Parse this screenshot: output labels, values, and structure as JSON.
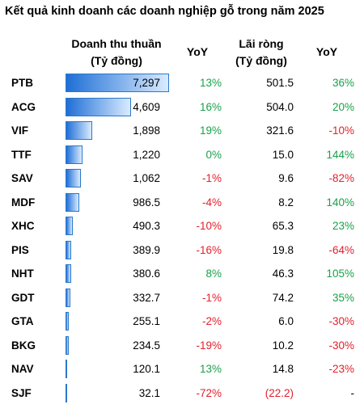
{
  "title": "Kết quả kinh doanh các doanh nghiệp gỗ trong năm 2025",
  "headers": {
    "revenue_line1": "Doanh thu thuần",
    "revenue_line2": "(Tỷ đồng)",
    "yoy1": "YoY",
    "net_line1": "Lãi ròng",
    "net_line2": "(Tỷ đồng)",
    "yoy2": "YoY"
  },
  "colors": {
    "positive": "#19a14a",
    "negative": "#e3202c",
    "bar": "#1f6fd6"
  },
  "chart_data": {
    "type": "table",
    "title": "Kết quả kinh doanh các doanh nghiệp gỗ trong năm 2025",
    "columns": [
      "Doanh thu thuần (Tỷ đồng)",
      "YoY",
      "Lãi ròng (Tỷ đồng)",
      "YoY"
    ],
    "revenue_max": 7297,
    "rows": [
      {
        "ticker": "PTB",
        "revenue": 7297,
        "revenue_label": "7,297",
        "yoy_revenue": "13%",
        "net_profit": "501.5",
        "yoy_profit": "36%"
      },
      {
        "ticker": "ACG",
        "revenue": 4609,
        "revenue_label": "4,609",
        "yoy_revenue": "16%",
        "net_profit": "504.0",
        "yoy_profit": "20%"
      },
      {
        "ticker": "VIF",
        "revenue": 1898,
        "revenue_label": "1,898",
        "yoy_revenue": "19%",
        "net_profit": "321.6",
        "yoy_profit": "-10%"
      },
      {
        "ticker": "TTF",
        "revenue": 1220,
        "revenue_label": "1,220",
        "yoy_revenue": "0%",
        "net_profit": "15.0",
        "yoy_profit": "144%"
      },
      {
        "ticker": "SAV",
        "revenue": 1062,
        "revenue_label": "1,062",
        "yoy_revenue": "-1%",
        "net_profit": "9.6",
        "yoy_profit": "-82%"
      },
      {
        "ticker": "MDF",
        "revenue": 986.5,
        "revenue_label": "986.5",
        "yoy_revenue": "-4%",
        "net_profit": "8.2",
        "yoy_profit": "140%"
      },
      {
        "ticker": "XHC",
        "revenue": 490.3,
        "revenue_label": "490.3",
        "yoy_revenue": "-10%",
        "net_profit": "65.3",
        "yoy_profit": "23%"
      },
      {
        "ticker": "PIS",
        "revenue": 389.9,
        "revenue_label": "389.9",
        "yoy_revenue": "-16%",
        "net_profit": "19.8",
        "yoy_profit": "-64%"
      },
      {
        "ticker": "NHT",
        "revenue": 380.6,
        "revenue_label": "380.6",
        "yoy_revenue": "8%",
        "net_profit": "46.3",
        "yoy_profit": "105%"
      },
      {
        "ticker": "GDT",
        "revenue": 332.7,
        "revenue_label": "332.7",
        "yoy_revenue": "-1%",
        "net_profit": "74.2",
        "yoy_profit": "35%"
      },
      {
        "ticker": "GTA",
        "revenue": 255.1,
        "revenue_label": "255.1",
        "yoy_revenue": "-2%",
        "net_profit": "6.0",
        "yoy_profit": "-30%"
      },
      {
        "ticker": "BKG",
        "revenue": 234.5,
        "revenue_label": "234.5",
        "yoy_revenue": "-19%",
        "net_profit": "10.2",
        "yoy_profit": "-30%"
      },
      {
        "ticker": "NAV",
        "revenue": 120.1,
        "revenue_label": "120.1",
        "yoy_revenue": "13%",
        "net_profit": "14.8",
        "yoy_profit": "-23%"
      },
      {
        "ticker": "SJF",
        "revenue": 32.1,
        "revenue_label": "32.1",
        "yoy_revenue": "-72%",
        "net_profit": "(22.2)",
        "yoy_profit": "-"
      }
    ]
  }
}
